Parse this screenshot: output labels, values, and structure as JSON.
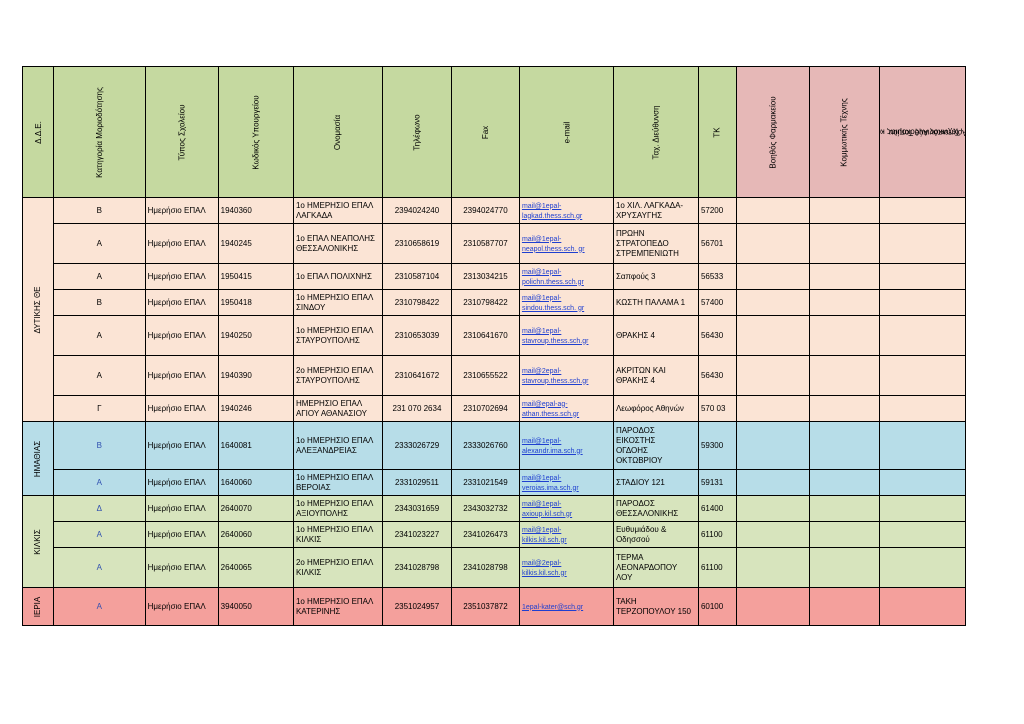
{
  "headers": {
    "dde": "Δ.Δ.Ε.",
    "category": "Κατηγορία Μοριοδότησης",
    "school_type": "Τύπος Σχολείου",
    "ministry_code": "Κωδικός Υπουργείου",
    "name": "Ονομασία",
    "phone": "Τηλέφωνο",
    "fax": "Fax",
    "email": "e-mail",
    "address": "Ταχ. Διεύθυνση",
    "tk": "ΤΚ",
    "spec1": "Βοηθός Φαρμακείου",
    "spec2": "Κομμωτικής Τέχνης",
    "spec3_line1": "Τεχνικός Ανθοκομίας και",
    "spec3_line2": "Αρχιτεκτονικής Τοπίου"
  },
  "regions": {
    "west": "ΔΥΤΙΚΗΣ ΘΕ",
    "imathia": "ΗΜΑΘΙΑΣ",
    "kilkis": "ΚΙΛΚΙΣ",
    "pieria": "ΙΕΡΙΑ"
  },
  "rows": [
    {
      "cat": "Β",
      "type": "Ημερήσιο ΕΠΑΛ",
      "code": "1940360",
      "name1": "1ο ΗΜΕΡΗΣΙΟ ΕΠΑΛ",
      "name2": "ΛΑΓΚΑΔΑ",
      "phone": "2394024240",
      "fax": "2394024770",
      "mail1": "mail@1epal-",
      "mail2": "lagkad.thess.sch.gr",
      "addr1": "1ο ΧΙΛ. ΛΑΓΚΑΔΑ-",
      "addr2": "ΧΡΥΣΑΥΓΗΣ",
      "addr3": "",
      "tk": "57200"
    },
    {
      "cat": "Α",
      "type": "Ημερήσιο ΕΠΑΛ",
      "code": "1940245",
      "name1": "1ο ΕΠΑΛ ΝΕΑΠΟΛΗΣ",
      "name2": "ΘΕΣΣΑΛΟΝΙΚΗΣ",
      "phone": "2310658619",
      "fax": "2310587707",
      "mail1": "mail@1epal-",
      "mail2": "neapol.thess.sch. gr",
      "addr1": "ΠΡΩΗΝ",
      "addr2": "ΣΤΡΑΤΟΠΕΔΟ",
      "addr3": "ΣΤΡΕΜΠΕΝΙΩΤΗ",
      "tk": "56701"
    },
    {
      "cat": "Α",
      "type": "Ημερήσιο ΕΠΑΛ",
      "code": "1950415",
      "name1": "1ο ΕΠΑΛ ΠΟΛΙΧΝΗΣ",
      "name2": "",
      "phone": "2310587104",
      "fax": "2313034215",
      "mail1": "mail@1epal-",
      "mail2": "polichn.thess.sch.gr",
      "addr1": "Σαπφούς 3",
      "addr2": "",
      "addr3": "",
      "tk": "56533"
    },
    {
      "cat": "Β",
      "type": "Ημερήσιο ΕΠΑΛ",
      "code": "1950418",
      "name1": "1ο ΗΜΕΡΗΣΙΟ ΕΠΑΛ",
      "name2": "ΣΙΝΔΟΥ",
      "phone": "2310798422",
      "fax": "2310798422",
      "mail1": "mail@1epal-",
      "mail2": "sindou.thess.sch. gr",
      "addr1": "ΚΩΣΤΗ ΠΑΛΑΜΑ 1",
      "addr2": "",
      "addr3": "",
      "tk": "57400"
    },
    {
      "cat": "Α",
      "type": "Ημερήσιο ΕΠΑΛ",
      "code": "1940250",
      "name1": "1ο ΗΜΕΡΗΣΙΟ ΕΠΑΛ",
      "name2": "ΣΤΑΥΡΟΥΠΟΛΗΣ",
      "phone": "2310653039",
      "fax": "2310641670",
      "mail1": "mail@1epal-",
      "mail2": "stavroup.thess.sch.gr",
      "addr1": "ΘΡΑΚΗΣ 4",
      "addr2": "",
      "addr3": "",
      "tk": "56430"
    },
    {
      "cat": "Α",
      "type": "Ημερήσιο ΕΠΑΛ",
      "code": "1940390",
      "name1": "2ο ΗΜΕΡΗΣΙΟ ΕΠΑΛ",
      "name2": "ΣΤΑΥΡΟΥΠΟΛΗΣ",
      "phone": "2310641672",
      "fax": "2310655522",
      "mail1": "mail@2epal-",
      "mail2": "stavroup.thess.sch.gr",
      "addr1": "ΑΚΡΙΤΩΝ ΚΑΙ",
      "addr2": "ΘΡΑΚΗΣ 4",
      "addr3": "",
      "tk": "56430"
    },
    {
      "cat": "Γ",
      "type": "Ημερήσιο ΕΠΑΛ",
      "code": "1940246",
      "name1": "ΗΜΕΡΗΣΙΟ ΕΠΑΛ",
      "name2": "ΑΓΙΟΥ ΑΘΑΝΑΣΙΟΥ",
      "phone": "231 070 2634",
      "fax": "2310702694",
      "mail1": "mail@epal-ag-",
      "mail2": "athan.thess.sch.gr",
      "addr1": "Λεωφόρος Αθηνών",
      "addr2": "",
      "addr3": "",
      "tk": "570 03"
    },
    {
      "cat": "Β",
      "type": "Ημερήσιο ΕΠΑΛ",
      "code": "1640081",
      "name1": "1ο ΗΜΕΡΗΣΙΟ ΕΠΑΛ",
      "name2": "ΑΛΕΞΑΝΔΡΕΙΑΣ",
      "phone": "2333026729",
      "fax": "2333026760",
      "mail1": "mail@1epal-",
      "mail2": "alexandr.ima.sch.gr",
      "addr1": "ΠΑΡΟΔΟΣ ΕΙΚΟΣΤΗΣ",
      "addr2": "ΟΓΔΟΗΣ",
      "addr3": "ΟΚΤΩΒΡΙΟΥ",
      "tk": "59300"
    },
    {
      "cat": "Α",
      "type": "Ημερήσιο ΕΠΑΛ",
      "code": "1640060",
      "name1": "1ο ΗΜΕΡΗΣΙΟ ΕΠΑΛ",
      "name2": "ΒΕΡΟΙΑΣ",
      "phone": "2331029511",
      "fax": "2331021549",
      "mail1": "mail@1epal-",
      "mail2": "veroias.ima.sch.gr",
      "addr1": "ΣΤΑΔΙΟΥ 121",
      "addr2": "",
      "addr3": "",
      "tk": "59131"
    },
    {
      "cat": "Δ",
      "type": "Ημερήσιο ΕΠΑΛ",
      "code": "2640070",
      "name1": "1ο ΗΜΕΡΗΣΙΟ ΕΠΑΛ",
      "name2": "ΑΞΙΟΥΠΟΛΗΣ",
      "phone": "2343031659",
      "fax": "2343032732",
      "mail1": "mail@1epal-",
      "mail2": "axioup.kil.sch.gr",
      "addr1": "ΠΑΡΟΔΟΣ",
      "addr2": "ΘΕΣΣΑΛΟΝΙΚΗΣ",
      "addr3": "",
      "tk": "61400"
    },
    {
      "cat": "Α",
      "type": "Ημερήσιο ΕΠΑΛ",
      "code": "2640060",
      "name1": "1ο ΗΜΕΡΗΣΙΟ ΕΠΑΛ",
      "name2": "ΚΙΛΚΙΣ",
      "phone": "2341023227",
      "fax": "2341026473",
      "mail1": "mail@1epal-",
      "mail2": "kilkis.kil.sch.gr",
      "addr1": "Ευθυμιάδου &",
      "addr2": "Οδησσού",
      "addr3": "",
      "tk": "61100"
    },
    {
      "cat": "Α",
      "type": "Ημερήσιο ΕΠΑΛ",
      "code": "2640065",
      "name1": "2ο ΗΜΕΡΗΣΙΟ ΕΠΑΛ",
      "name2": "ΚΙΛΚΙΣ",
      "phone": "2341028798",
      "fax": "2341028798",
      "mail1": "mail@2epal-",
      "mail2": "kilkis.kil.sch.gr",
      "addr1": "ΤΕΡΜΑ",
      "addr2": "ΛΕΟΝΑΡΔΟΠΟΥ",
      "addr3": "ΛΟΥ",
      "tk": "61100"
    },
    {
      "cat": "Α",
      "type": "Ημερήσιο ΕΠΑΛ",
      "code": "3940050",
      "name1": "1ο ΗΜΕΡΗΣΙΟ ΕΠΑΛ",
      "name2": "ΚΑΤΕΡΙΝΗΣ",
      "phone": "2351024957",
      "fax": "2351037872",
      "mail1": "1epal-kater@sch.gr",
      "mail2": "",
      "addr1": "ΤΑΚΗ",
      "addr2": "ΤΕΡΖΟΠΟΥΛΟΥ 150",
      "addr3": "",
      "tk": "60100"
    }
  ]
}
